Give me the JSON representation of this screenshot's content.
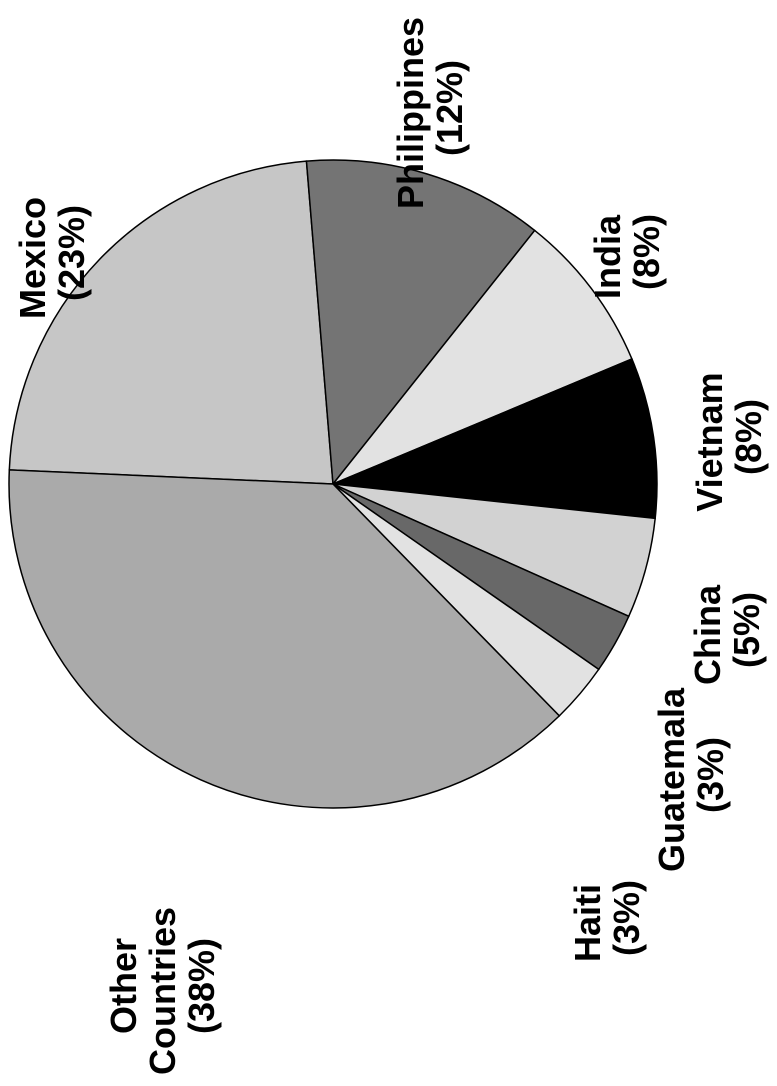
{
  "chart_data": {
    "type": "pie",
    "title": "",
    "slices": [
      {
        "label": "Mexico",
        "value": 23,
        "value_text": "(23%)",
        "color": "#c6c6c6"
      },
      {
        "label": "Philippines",
        "value": 12,
        "value_text": "(12%)",
        "color": "#747474"
      },
      {
        "label": "India",
        "value": 8,
        "value_text": "(8%)",
        "color": "#e2e2e2"
      },
      {
        "label": "Vietnam",
        "value": 8,
        "value_text": "(8%)",
        "color": "#000000"
      },
      {
        "label": "China",
        "value": 5,
        "value_text": "(5%)",
        "color": "#d2d2d2"
      },
      {
        "label": "Guatemala",
        "value": 3,
        "value_text": "(3%)",
        "color": "#686868"
      },
      {
        "label": "Haiti",
        "value": 3,
        "value_text": "(3%)",
        "color": "#e2e2e2"
      },
      {
        "label": "Other Countries",
        "value": 38,
        "value_text": "(38%)",
        "color": "#aaaaaa"
      }
    ]
  }
}
